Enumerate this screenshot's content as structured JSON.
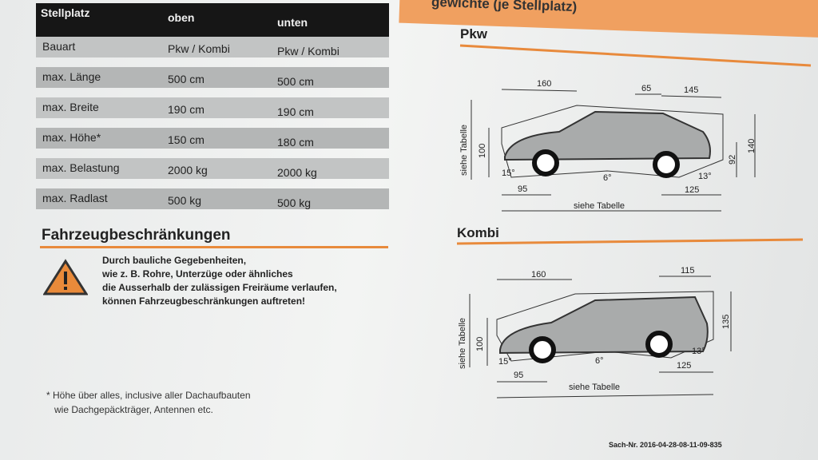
{
  "header": {
    "banner": "gewichte (je Stellplatz)"
  },
  "table": {
    "header": [
      "Stellplatz",
      "oben",
      "unten"
    ],
    "rows": [
      [
        "Bauart",
        "Pkw / Kombi",
        "Pkw / Kombi"
      ],
      [
        "max. Länge",
        "500 cm",
        "500 cm"
      ],
      [
        "max. Breite",
        "190 cm",
        "190 cm"
      ],
      [
        "max. Höhe*",
        "150 cm",
        "180 cm"
      ],
      [
        "max. Belastung",
        "2000 kg",
        "2000 kg"
      ],
      [
        "max. Radlast",
        "500 kg",
        "500 kg"
      ]
    ]
  },
  "restrictions": {
    "title": "Fahrzeugbeschränkungen",
    "lines": [
      "Durch bauliche Gegebenheiten,",
      "wie z. B. Rohre, Unterzüge oder ähnliches",
      "die Ausserhalb der zulässigen Freiräume verlaufen,",
      "können Fahrzeugbeschränkungen auftreten!"
    ]
  },
  "footnote": [
    "* Höhe über alles, inclusive aller Dachaufbauten",
    "wie Dachgepäckträger, Antennen etc."
  ],
  "diagrams": {
    "pkw": {
      "title": "Pkw",
      "front": "160",
      "rear_top": "65",
      "rear": "145",
      "side_label": "siehe Tabelle",
      "height_low": "100",
      "height_total": "140",
      "height_rear": "92",
      "angle_front": "15°",
      "angle_mid": "6°",
      "angle_rear": "13°",
      "overhang_front": "95",
      "overhang_rear": "125",
      "length_label": "siehe Tabelle"
    },
    "kombi": {
      "title": "Kombi",
      "front": "160",
      "rear": "115",
      "side_label": "siehe Tabelle",
      "height_low": "100",
      "height_total": "135",
      "angle_front": "15°",
      "angle_mid": "6°",
      "angle_rear": "13°",
      "overhang_front": "95",
      "overhang_rear": "125",
      "length_label": "siehe Tabelle"
    }
  },
  "sach_nr": "Sach-Nr. 2016-04-28-08-11-09-835"
}
